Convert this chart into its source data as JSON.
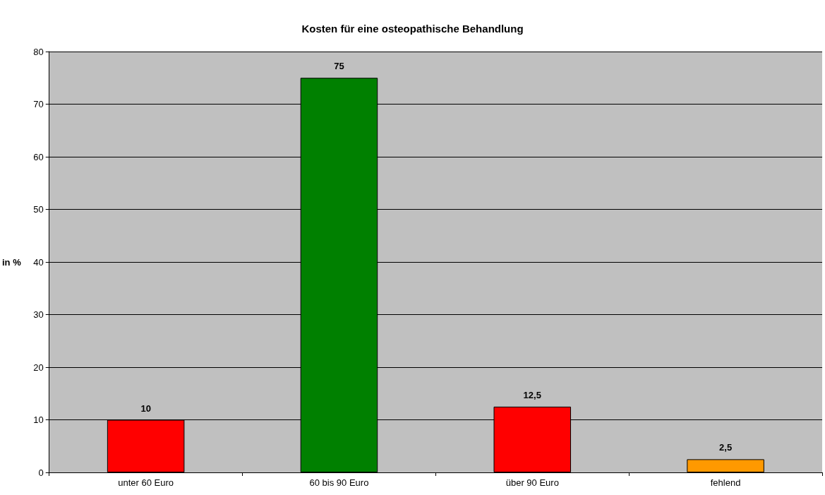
{
  "chart_data": {
    "type": "bar",
    "title": "Kosten für eine osteopathische Behandlung",
    "ylabel": "in %",
    "categories": [
      "unter 60 Euro",
      "60 bis 90 Euro",
      "über 90 Euro",
      "fehlend"
    ],
    "values": [
      10,
      75,
      12.5,
      2.5
    ],
    "colors": [
      "#ff0000",
      "#008000",
      "#ff0000",
      "#ff9900"
    ],
    "value_labels": [
      "10",
      "75",
      "12,5",
      "2,5"
    ],
    "ylim": [
      0,
      80
    ],
    "yticks": [
      0,
      10,
      20,
      30,
      40,
      50,
      60,
      70,
      80
    ],
    "grid": "y"
  }
}
